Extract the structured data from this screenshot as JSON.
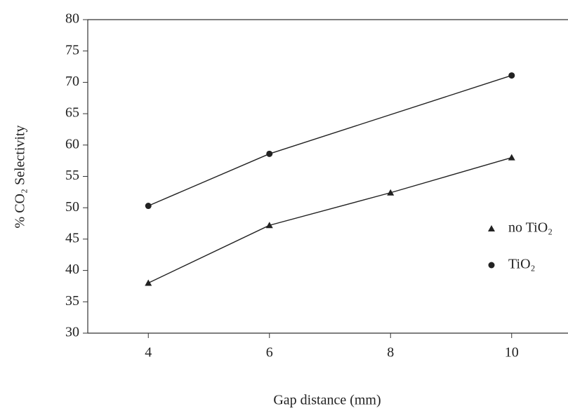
{
  "chart_data": {
    "type": "line",
    "x_label": "Gap distance (mm)",
    "y_label": "% CO₂ Selectivity",
    "xlim": [
      3,
      11
    ],
    "xticks": [
      4,
      6,
      8,
      10
    ],
    "ylim": [
      30,
      80
    ],
    "yticks": [
      30,
      35,
      40,
      45,
      50,
      55,
      60,
      65,
      70,
      75,
      80
    ],
    "legend": "right",
    "series": [
      {
        "name": "no TiO₂",
        "color": "#222222",
        "marker": "triangle",
        "x": [
          4,
          6,
          8,
          10
        ],
        "values": [
          38,
          47.2,
          52.4,
          58
        ]
      },
      {
        "name": "TiO₂",
        "color": "#222222",
        "marker": "circle",
        "x": [
          4,
          6,
          10
        ],
        "values": [
          50.3,
          58.6,
          71.1
        ]
      }
    ]
  }
}
